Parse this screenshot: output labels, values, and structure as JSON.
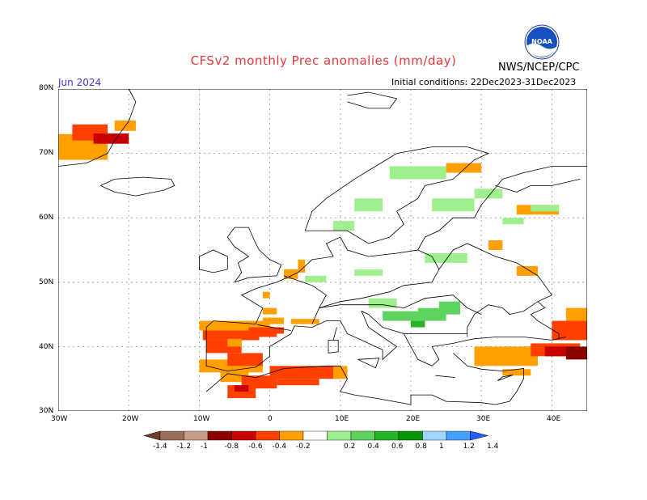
{
  "header": {
    "title": "CFSv2 monthly Prec anomalies (mm/day)",
    "month": "Jun 2024",
    "initial_conditions": "Initial conditions: 22Dec2023-31Dec2023",
    "agency": "NWS/NCEP/CPC",
    "logo_text": "NOAA"
  },
  "axes": {
    "lat_labels": [
      "80N",
      "70N",
      "60N",
      "50N",
      "40N",
      "30N"
    ],
    "lon_labels": [
      "30W",
      "20W",
      "10W",
      "0",
      "10E",
      "20E",
      "30E",
      "40E"
    ]
  },
  "colorbar": {
    "labels": [
      "-1.4",
      "-1.2",
      "-1",
      "-0.8",
      "-0.6",
      "-0.4",
      "-0.2",
      "0.2",
      "0.4",
      "0.6",
      "0.8",
      "1",
      "1.2",
      "1.4"
    ],
    "colors": [
      "#6e3f2a",
      "#9c6f5a",
      "#c89c88",
      "#8b0000",
      "#c80000",
      "#ff4000",
      "#ff9f00",
      "#ffffff",
      "#9fef8f",
      "#5fd35f",
      "#28b428",
      "#089608",
      "#9fd6ff",
      "#45a0ff",
      "#2060ff"
    ]
  },
  "map_colors": {
    "orange": "#ff9f00",
    "red_orange": "#ff4000",
    "red": "#c80000",
    "dark_red": "#8b0000",
    "light_green": "#9fef8f",
    "green": "#5fd35f",
    "dark_green": "#28b428"
  }
}
